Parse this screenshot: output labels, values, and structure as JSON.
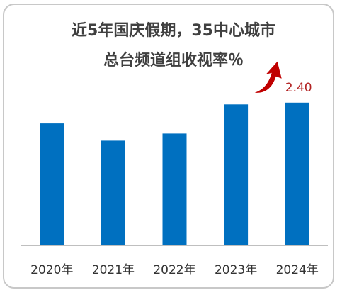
{
  "chart_data": {
    "type": "bar",
    "title": "近5年国庆假期，35中心城市",
    "subtitle": "总台频道组收视率％",
    "categories": [
      "2020年",
      "2021年",
      "2022年",
      "2023年",
      "2024年"
    ],
    "values": [
      2.05,
      1.76,
      1.88,
      2.37,
      2.4
    ],
    "ylim": [
      0,
      2.6
    ],
    "grid": false,
    "bar_color": "#0070c0",
    "annotations": [
      {
        "category": "2024年",
        "text": "2.40",
        "color": "#b22222",
        "arrow_icon": "up-arrow-icon",
        "arrow_color": "#c00000"
      }
    ]
  }
}
